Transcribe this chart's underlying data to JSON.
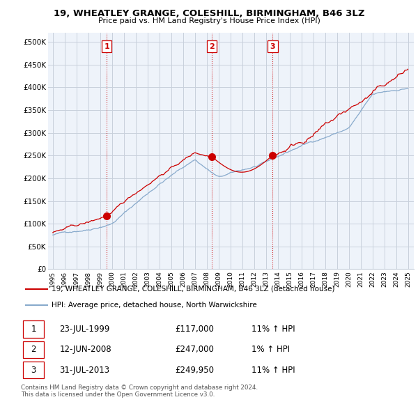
{
  "title": "19, WHEATLEY GRANGE, COLESHILL, BIRMINGHAM, B46 3LZ",
  "subtitle": "Price paid vs. HM Land Registry's House Price Index (HPI)",
  "ylim": [
    0,
    520000
  ],
  "yticks": [
    0,
    50000,
    100000,
    150000,
    200000,
    250000,
    300000,
    350000,
    400000,
    450000,
    500000
  ],
  "ytick_labels": [
    "£0",
    "£50K",
    "£100K",
    "£150K",
    "£200K",
    "£250K",
    "£300K",
    "£350K",
    "£400K",
    "£450K",
    "£500K"
  ],
  "sale_color": "#cc0000",
  "hpi_color": "#88aacc",
  "chart_bg_color": "#eef3fa",
  "background_color": "#ffffff",
  "grid_color": "#c8d0dc",
  "sales": [
    {
      "date_num": 1999.56,
      "price": 117000,
      "label": "1"
    },
    {
      "date_num": 2008.44,
      "price": 247000,
      "label": "2"
    },
    {
      "date_num": 2013.58,
      "price": 249950,
      "label": "3"
    }
  ],
  "transactions": [
    {
      "date": "23-JUL-1999",
      "price": "£117,000",
      "pct": "11%",
      "dir": "↑",
      "label": "1"
    },
    {
      "date": "12-JUN-2008",
      "price": "£247,000",
      "pct": "1%",
      "dir": "↑",
      "label": "2"
    },
    {
      "date": "31-JUL-2013",
      "price": "£249,950",
      "pct": "11%",
      "dir": "↑",
      "label": "3"
    }
  ],
  "legend_sale_label": "19, WHEATLEY GRANGE, COLESHILL, BIRMINGHAM, B46 3LZ (detached house)",
  "legend_hpi_label": "HPI: Average price, detached house, North Warwickshire",
  "footer": "Contains HM Land Registry data © Crown copyright and database right 2024.\nThis data is licensed under the Open Government Licence v3.0.",
  "vline_color": "#cc0000",
  "vline_dates": [
    1999.56,
    2008.44,
    2013.58
  ],
  "xlim_start": 1994.6,
  "xlim_end": 2025.5,
  "xtick_start": 1995,
  "xtick_end": 2025
}
